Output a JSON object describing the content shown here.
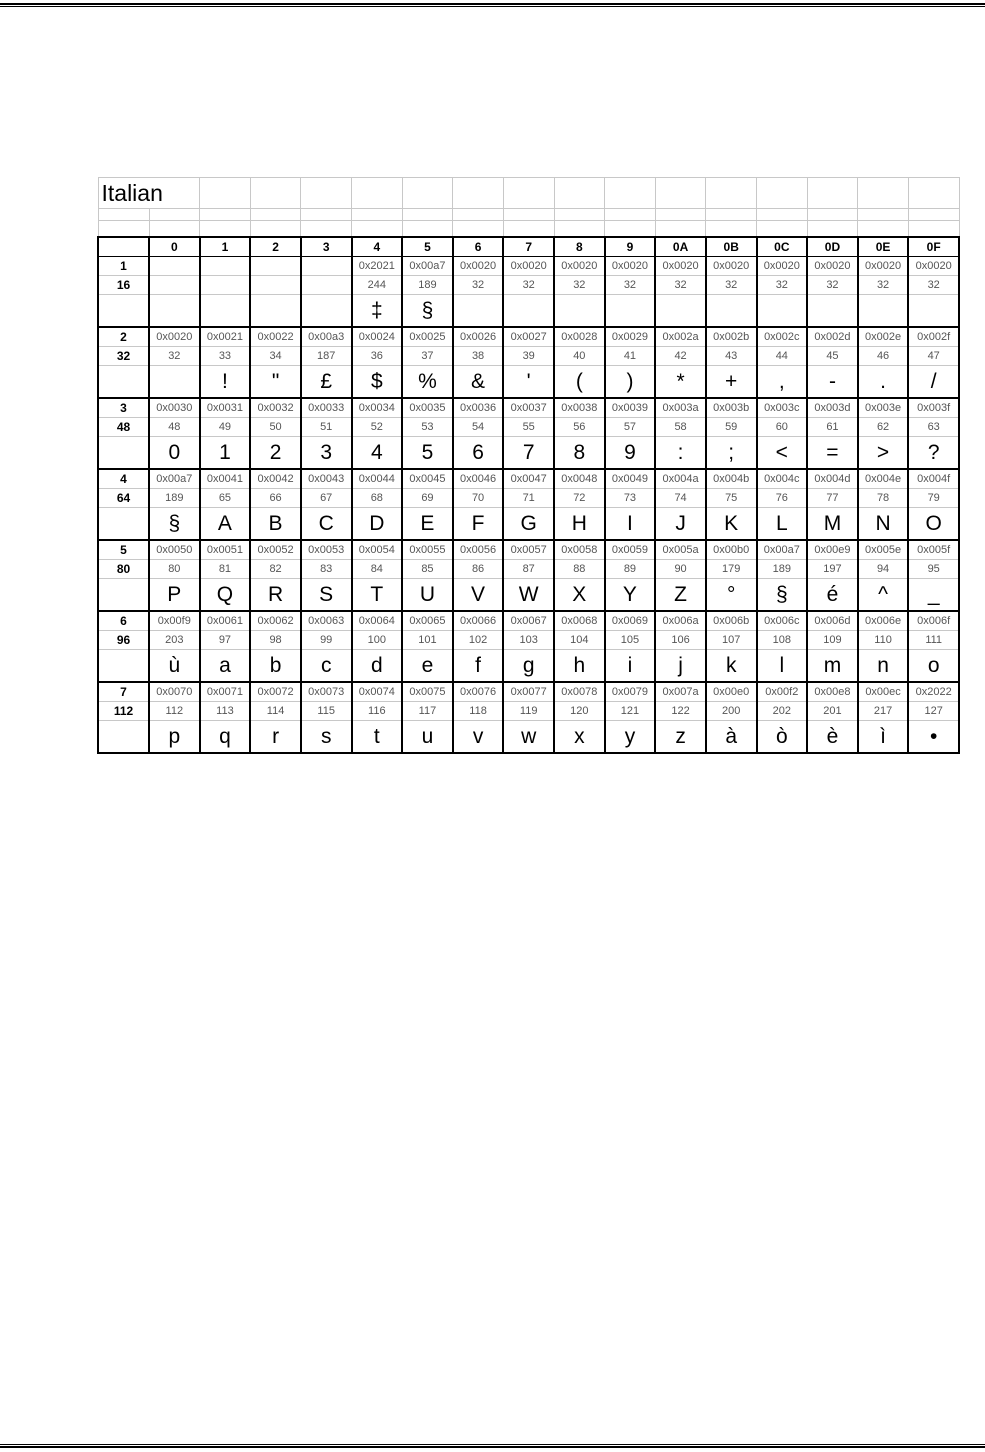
{
  "title": "Italian",
  "column_headers": [
    "0",
    "1",
    "2",
    "3",
    "4",
    "5",
    "6",
    "7",
    "8",
    "9",
    "0A",
    "0B",
    "0C",
    "0D",
    "0E",
    "0F"
  ],
  "groups": [
    {
      "row": "1",
      "base": "16",
      "cells": [
        {
          "hex": "",
          "dec": "",
          "char": ""
        },
        {
          "hex": "",
          "dec": "",
          "char": ""
        },
        {
          "hex": "",
          "dec": "",
          "char": ""
        },
        {
          "hex": "",
          "dec": "",
          "char": ""
        },
        {
          "hex": "0x2021",
          "dec": "244",
          "char": "‡"
        },
        {
          "hex": "0x00a7",
          "dec": "189",
          "char": "§"
        },
        {
          "hex": "0x0020",
          "dec": "32",
          "char": ""
        },
        {
          "hex": "0x0020",
          "dec": "32",
          "char": ""
        },
        {
          "hex": "0x0020",
          "dec": "32",
          "char": ""
        },
        {
          "hex": "0x0020",
          "dec": "32",
          "char": ""
        },
        {
          "hex": "0x0020",
          "dec": "32",
          "char": ""
        },
        {
          "hex": "0x0020",
          "dec": "32",
          "char": ""
        },
        {
          "hex": "0x0020",
          "dec": "32",
          "char": ""
        },
        {
          "hex": "0x0020",
          "dec": "32",
          "char": ""
        },
        {
          "hex": "0x0020",
          "dec": "32",
          "char": ""
        },
        {
          "hex": "0x0020",
          "dec": "32",
          "char": ""
        }
      ]
    },
    {
      "row": "2",
      "base": "32",
      "cells": [
        {
          "hex": "0x0020",
          "dec": "32",
          "char": ""
        },
        {
          "hex": "0x0021",
          "dec": "33",
          "char": "!"
        },
        {
          "hex": "0x0022",
          "dec": "34",
          "char": "\""
        },
        {
          "hex": "0x00a3",
          "dec": "187",
          "char": "£"
        },
        {
          "hex": "0x0024",
          "dec": "36",
          "char": "$"
        },
        {
          "hex": "0x0025",
          "dec": "37",
          "char": "%"
        },
        {
          "hex": "0x0026",
          "dec": "38",
          "char": "&"
        },
        {
          "hex": "0x0027",
          "dec": "39",
          "char": "'"
        },
        {
          "hex": "0x0028",
          "dec": "40",
          "char": "("
        },
        {
          "hex": "0x0029",
          "dec": "41",
          "char": ")"
        },
        {
          "hex": "0x002a",
          "dec": "42",
          "char": "*"
        },
        {
          "hex": "0x002b",
          "dec": "43",
          "char": "+"
        },
        {
          "hex": "0x002c",
          "dec": "44",
          "char": ","
        },
        {
          "hex": "0x002d",
          "dec": "45",
          "char": "-"
        },
        {
          "hex": "0x002e",
          "dec": "46",
          "char": "."
        },
        {
          "hex": "0x002f",
          "dec": "47",
          "char": "/"
        }
      ]
    },
    {
      "row": "3",
      "base": "48",
      "cells": [
        {
          "hex": "0x0030",
          "dec": "48",
          "char": "0"
        },
        {
          "hex": "0x0031",
          "dec": "49",
          "char": "1"
        },
        {
          "hex": "0x0032",
          "dec": "50",
          "char": "2"
        },
        {
          "hex": "0x0033",
          "dec": "51",
          "char": "3"
        },
        {
          "hex": "0x0034",
          "dec": "52",
          "char": "4"
        },
        {
          "hex": "0x0035",
          "dec": "53",
          "char": "5"
        },
        {
          "hex": "0x0036",
          "dec": "54",
          "char": "6"
        },
        {
          "hex": "0x0037",
          "dec": "55",
          "char": "7"
        },
        {
          "hex": "0x0038",
          "dec": "56",
          "char": "8"
        },
        {
          "hex": "0x0039",
          "dec": "57",
          "char": "9"
        },
        {
          "hex": "0x003a",
          "dec": "58",
          "char": ":"
        },
        {
          "hex": "0x003b",
          "dec": "59",
          "char": ";"
        },
        {
          "hex": "0x003c",
          "dec": "60",
          "char": "<"
        },
        {
          "hex": "0x003d",
          "dec": "61",
          "char": "="
        },
        {
          "hex": "0x003e",
          "dec": "62",
          "char": ">"
        },
        {
          "hex": "0x003f",
          "dec": "63",
          "char": "?"
        }
      ]
    },
    {
      "row": "4",
      "base": "64",
      "cells": [
        {
          "hex": "0x00a7",
          "dec": "189",
          "char": "§"
        },
        {
          "hex": "0x0041",
          "dec": "65",
          "char": "A"
        },
        {
          "hex": "0x0042",
          "dec": "66",
          "char": "B"
        },
        {
          "hex": "0x0043",
          "dec": "67",
          "char": "C"
        },
        {
          "hex": "0x0044",
          "dec": "68",
          "char": "D"
        },
        {
          "hex": "0x0045",
          "dec": "69",
          "char": "E"
        },
        {
          "hex": "0x0046",
          "dec": "70",
          "char": "F"
        },
        {
          "hex": "0x0047",
          "dec": "71",
          "char": "G"
        },
        {
          "hex": "0x0048",
          "dec": "72",
          "char": "H"
        },
        {
          "hex": "0x0049",
          "dec": "73",
          "char": "I"
        },
        {
          "hex": "0x004a",
          "dec": "74",
          "char": "J"
        },
        {
          "hex": "0x004b",
          "dec": "75",
          "char": "K"
        },
        {
          "hex": "0x004c",
          "dec": "76",
          "char": "L"
        },
        {
          "hex": "0x004d",
          "dec": "77",
          "char": "M"
        },
        {
          "hex": "0x004e",
          "dec": "78",
          "char": "N"
        },
        {
          "hex": "0x004f",
          "dec": "79",
          "char": "O"
        }
      ]
    },
    {
      "row": "5",
      "base": "80",
      "cells": [
        {
          "hex": "0x0050",
          "dec": "80",
          "char": "P"
        },
        {
          "hex": "0x0051",
          "dec": "81",
          "char": "Q"
        },
        {
          "hex": "0x0052",
          "dec": "82",
          "char": "R"
        },
        {
          "hex": "0x0053",
          "dec": "83",
          "char": "S"
        },
        {
          "hex": "0x0054",
          "dec": "84",
          "char": "T"
        },
        {
          "hex": "0x0055",
          "dec": "85",
          "char": "U"
        },
        {
          "hex": "0x0056",
          "dec": "86",
          "char": "V"
        },
        {
          "hex": "0x0057",
          "dec": "87",
          "char": "W"
        },
        {
          "hex": "0x0058",
          "dec": "88",
          "char": "X"
        },
        {
          "hex": "0x0059",
          "dec": "89",
          "char": "Y"
        },
        {
          "hex": "0x005a",
          "dec": "90",
          "char": "Z"
        },
        {
          "hex": "0x00b0",
          "dec": "179",
          "char": "°"
        },
        {
          "hex": "0x00a7",
          "dec": "189",
          "char": "§"
        },
        {
          "hex": "0x00e9",
          "dec": "197",
          "char": "é"
        },
        {
          "hex": "0x005e",
          "dec": "94",
          "char": "^"
        },
        {
          "hex": "0x005f",
          "dec": "95",
          "char": "_"
        }
      ]
    },
    {
      "row": "6",
      "base": "96",
      "cells": [
        {
          "hex": "0x00f9",
          "dec": "203",
          "char": "ù"
        },
        {
          "hex": "0x0061",
          "dec": "97",
          "char": "a"
        },
        {
          "hex": "0x0062",
          "dec": "98",
          "char": "b"
        },
        {
          "hex": "0x0063",
          "dec": "99",
          "char": "c"
        },
        {
          "hex": "0x0064",
          "dec": "100",
          "char": "d"
        },
        {
          "hex": "0x0065",
          "dec": "101",
          "char": "e"
        },
        {
          "hex": "0x0066",
          "dec": "102",
          "char": "f"
        },
        {
          "hex": "0x0067",
          "dec": "103",
          "char": "g"
        },
        {
          "hex": "0x0068",
          "dec": "104",
          "char": "h"
        },
        {
          "hex": "0x0069",
          "dec": "105",
          "char": "i"
        },
        {
          "hex": "0x006a",
          "dec": "106",
          "char": "j"
        },
        {
          "hex": "0x006b",
          "dec": "107",
          "char": "k"
        },
        {
          "hex": "0x006c",
          "dec": "108",
          "char": "l"
        },
        {
          "hex": "0x006d",
          "dec": "109",
          "char": "m"
        },
        {
          "hex": "0x006e",
          "dec": "110",
          "char": "n"
        },
        {
          "hex": "0x006f",
          "dec": "111",
          "char": "o"
        }
      ]
    },
    {
      "row": "7",
      "base": "112",
      "cells": [
        {
          "hex": "0x0070",
          "dec": "112",
          "char": "p"
        },
        {
          "hex": "0x0071",
          "dec": "113",
          "char": "q"
        },
        {
          "hex": "0x0072",
          "dec": "114",
          "char": "r"
        },
        {
          "hex": "0x0073",
          "dec": "115",
          "char": "s"
        },
        {
          "hex": "0x0074",
          "dec": "116",
          "char": "t"
        },
        {
          "hex": "0x0075",
          "dec": "117",
          "char": "u"
        },
        {
          "hex": "0x0076",
          "dec": "118",
          "char": "v"
        },
        {
          "hex": "0x0077",
          "dec": "119",
          "char": "w"
        },
        {
          "hex": "0x0078",
          "dec": "120",
          "char": "x"
        },
        {
          "hex": "0x0079",
          "dec": "121",
          "char": "y"
        },
        {
          "hex": "0x007a",
          "dec": "122",
          "char": "z"
        },
        {
          "hex": "0x00e0",
          "dec": "200",
          "char": "à"
        },
        {
          "hex": "0x00f2",
          "dec": "202",
          "char": "ò"
        },
        {
          "hex": "0x00e8",
          "dec": "201",
          "char": "è"
        },
        {
          "hex": "0x00ec",
          "dec": "217",
          "char": "ì"
        },
        {
          "hex": "0x2022",
          "dec": "127",
          "char": "•"
        }
      ]
    }
  ]
}
